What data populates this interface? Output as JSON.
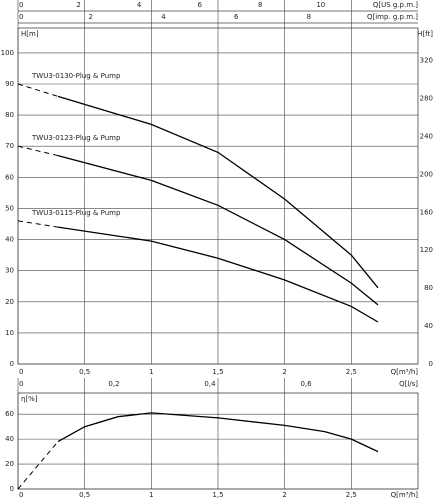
{
  "chart_data": [
    {
      "type": "line",
      "x_label": "Q[m³/h]",
      "y_label": "H[m]",
      "y2_label": "H[ft]",
      "xlim": [
        0,
        3
      ],
      "xticks": [
        0,
        {
          "value": 0.5,
          "label": "0,5"
        },
        1,
        {
          "value": 1.5,
          "label": "1,5"
        },
        2,
        {
          "value": 2.5,
          "label": "2,5"
        }
      ],
      "ylim": [
        0,
        108
      ],
      "yticks": [
        0,
        10,
        20,
        30,
        40,
        50,
        60,
        70,
        80,
        90,
        100
      ],
      "y2lim": [
        0,
        354.3
      ],
      "y2ticks": [
        0,
        40,
        80,
        120,
        160,
        200,
        240,
        280,
        320
      ],
      "grid": true,
      "top_axes": [
        {
          "label": "Q[US g.p.m.]",
          "lim": [
            0,
            13.21
          ],
          "ticks": [
            0,
            2,
            4,
            6,
            8,
            10
          ]
        },
        {
          "label": "Q[imp. g.p.m.]",
          "lim": [
            0,
            11.0
          ],
          "ticks": [
            0,
            2,
            4,
            6,
            8
          ]
        }
      ],
      "series": [
        {
          "name": "TWU3-0130-Plug & Pump",
          "color": "#000000",
          "x": [
            0,
            0.3,
            1.0,
            1.5,
            2.0,
            2.5,
            2.7
          ],
          "values": [
            90,
            86,
            77,
            68,
            53,
            35,
            24.5
          ]
        },
        {
          "name": "TWU3-0123-Plug & Pump",
          "color": "#000000",
          "x": [
            0,
            0.3,
            1.0,
            1.5,
            2.0,
            2.5,
            2.7
          ],
          "values": [
            70,
            67,
            59,
            51,
            40,
            26,
            19
          ]
        },
        {
          "name": "TWU3-0115-Plug & Pump",
          "color": "#000000",
          "x": [
            0,
            0.3,
            1.0,
            1.5,
            2.0,
            2.5,
            2.7
          ],
          "values": [
            46,
            44,
            39.5,
            34,
            27,
            18.5,
            13.5
          ]
        }
      ]
    },
    {
      "type": "line",
      "x_label": "Q[m³/h]",
      "y_label": "η[%]",
      "xlim": [
        0,
        3
      ],
      "xticks": [
        0,
        {
          "value": 0.5,
          "label": "0,5"
        },
        1,
        {
          "value": 1.5,
          "label": "1,5"
        },
        2,
        {
          "value": 2.5,
          "label": "2,5"
        }
      ],
      "ylim": [
        0,
        77
      ],
      "yticks": [
        0,
        20,
        40,
        60
      ],
      "grid": true,
      "top_axes": [
        {
          "label": "Q[l/s]",
          "lim": [
            0,
            0.8333
          ],
          "ticks": [
            0,
            {
              "value": 0.2,
              "label": "0,2"
            },
            {
              "value": 0.4,
              "label": "0,4"
            },
            {
              "value": 0.6,
              "label": "0,6"
            }
          ]
        }
      ],
      "series": [
        {
          "color": "#000000",
          "x": [
            0,
            0.3,
            0.5,
            0.75,
            1.0,
            1.5,
            2.0,
            2.3,
            2.5,
            2.7
          ],
          "values": [
            0,
            38,
            50,
            58,
            61,
            57,
            51,
            46,
            40,
            30
          ]
        }
      ]
    }
  ]
}
